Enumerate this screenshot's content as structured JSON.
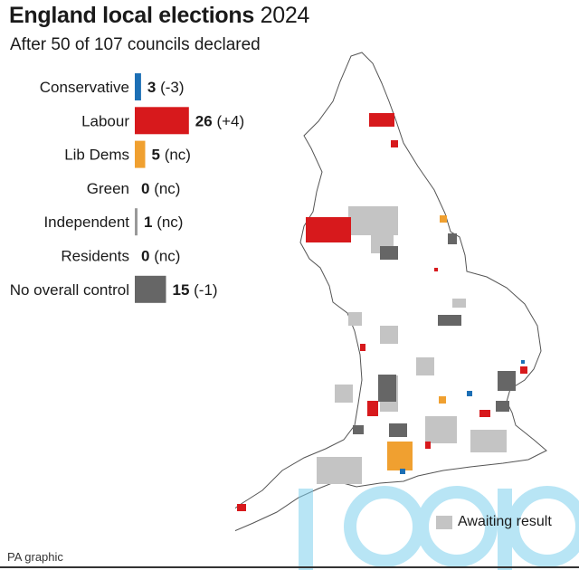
{
  "header": {
    "title_bold": "England local elections",
    "title_year": "2024",
    "subtitle": "After 50 of 107 councils declared"
  },
  "chart_data": {
    "type": "bar",
    "orientation": "horizontal",
    "categories": [
      "Conservative",
      "Labour",
      "Lib Dems",
      "Green",
      "Independent",
      "Residents",
      "No overall control"
    ],
    "values": [
      3,
      26,
      5,
      0,
      1,
      0,
      15
    ],
    "changes": [
      "(-3)",
      "(+4)",
      "(nc)",
      "(nc)",
      "(nc)",
      "(nc)",
      "(-1)"
    ],
    "colors": [
      "#1c6fb5",
      "#d7191c",
      "#f0a030",
      "#3aa845",
      "#999999",
      "#999999",
      "#666666"
    ]
  },
  "map": {
    "colors": {
      "land": "#ffffff",
      "outline": "#555555",
      "awaiting": "#c4c4c4",
      "labour": "#d7191c",
      "conservative": "#1c6fb5",
      "libdem": "#f0a030",
      "noc": "#666666"
    }
  },
  "legend": {
    "awaiting_label": "Awaiting result",
    "awaiting_color": "#c4c4c4"
  },
  "footer": {
    "credit": "PA graphic"
  }
}
